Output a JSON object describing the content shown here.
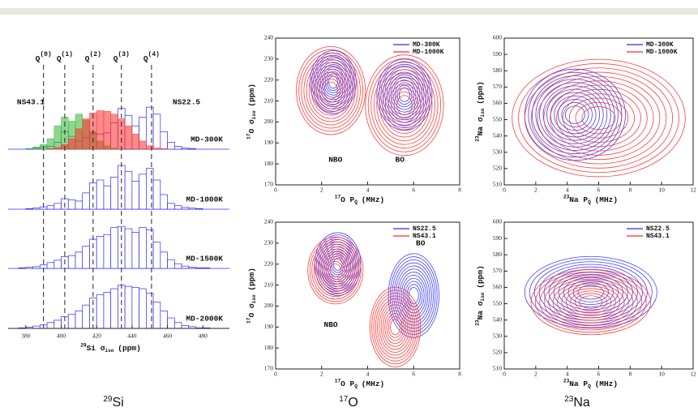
{
  "chart_data": [
    {
      "type": "histogram",
      "xlabel": {
        "sup": "29",
        "base": "Si σ",
        "sub": "iso",
        "unit": "(ppm)"
      },
      "xlim": [
        370,
        495
      ],
      "xticks": [
        380,
        400,
        420,
        440,
        460,
        480
      ],
      "ylim": [
        0,
        100
      ],
      "bins": [
        376,
        380,
        384,
        388,
        392,
        396,
        400,
        404,
        408,
        412,
        416,
        420,
        424,
        428,
        432,
        436,
        440,
        444,
        448,
        452,
        456,
        460,
        464,
        468,
        472,
        476,
        480,
        484,
        488
      ],
      "series": [
        {
          "name": "MD-300K",
          "color": "#2b2bff",
          "values": [
            0,
            1,
            2,
            4,
            5,
            12,
            30,
            22,
            14,
            20,
            28,
            26,
            28,
            45,
            70,
            58,
            40,
            55,
            72,
            60,
            30,
            12,
            5,
            2,
            1,
            0,
            0,
            0
          ]
        },
        {
          "name": "MD-1000K",
          "color": "#2b2bff",
          "values": [
            0,
            1,
            2,
            4,
            6,
            10,
            18,
            16,
            14,
            28,
            45,
            50,
            40,
            55,
            75,
            65,
            48,
            60,
            70,
            50,
            25,
            10,
            6,
            3,
            2,
            1,
            0,
            0
          ]
        },
        {
          "name": "MD-1500K",
          "color": "#2b2bff",
          "values": [
            1,
            2,
            3,
            6,
            10,
            14,
            20,
            22,
            28,
            38,
            50,
            55,
            58,
            70,
            72,
            68,
            62,
            70,
            66,
            45,
            28,
            15,
            8,
            4,
            2,
            1,
            1,
            0
          ]
        },
        {
          "name": "MD-2000K",
          "color": "#2b2bff",
          "values": [
            1,
            2,
            4,
            6,
            10,
            14,
            20,
            24,
            30,
            40,
            52,
            58,
            62,
            68,
            74,
            72,
            70,
            68,
            60,
            45,
            30,
            18,
            10,
            5,
            3,
            1,
            1,
            0
          ]
        }
      ],
      "overlays": [
        {
          "name": "NS43.1",
          "color": "#2fb52f",
          "values": [
            0,
            1,
            4,
            8,
            18,
            40,
            55,
            48,
            60,
            50,
            30,
            14,
            6,
            2,
            0,
            0,
            0,
            0,
            0,
            0,
            0,
            0,
            0,
            0,
            0,
            0,
            0,
            0
          ]
        },
        {
          "name": "NS22.5",
          "color": "#ff2a2a",
          "values": [
            0,
            0,
            0,
            0,
            1,
            3,
            8,
            18,
            35,
            52,
            62,
            66,
            65,
            60,
            52,
            40,
            26,
            14,
            6,
            2,
            1,
            0,
            0,
            0,
            0,
            0,
            0,
            0
          ]
        }
      ],
      "reference_lines": [
        {
          "x": 390,
          "base": "Q",
          "sup": "(0)"
        },
        {
          "x": 402,
          "base": "Q",
          "sup": "(1)"
        },
        {
          "x": 418,
          "base": "Q",
          "sup": "(2)"
        },
        {
          "x": 434,
          "base": "Q",
          "sup": "(3)"
        },
        {
          "x": 451,
          "base": "Q",
          "sup": "(4)"
        }
      ]
    },
    {
      "type": "contour",
      "xlabel": {
        "sup": "17",
        "base": "O P",
        "sub": "Q",
        "unit": "(MHz)"
      },
      "ylabel": {
        "sup": "17",
        "base": "O σ",
        "sub": "iso",
        "unit": "(ppm)"
      },
      "xlim": [
        0,
        8
      ],
      "xticks": [
        0,
        2,
        4,
        6,
        8
      ],
      "ylim": [
        170,
        240
      ],
      "yticks": [
        170,
        180,
        190,
        200,
        210,
        220,
        230,
        240
      ],
      "legend": "top-right",
      "series": [
        {
          "name": "MD-300K",
          "color": "#2b2bff",
          "x": [
            2.5,
            5.6
          ],
          "values": [
            219,
            213
          ],
          "x_spread": [
            1.0,
            1.2
          ],
          "y_spread": [
            15,
            17
          ]
        },
        {
          "name": "MD-1000K",
          "color": "#ff2a2a",
          "x": [
            2.4,
            5.6
          ],
          "values": [
            215,
            208
          ],
          "x_spread": [
            1.5,
            1.7
          ],
          "y_spread": [
            21,
            24
          ]
        }
      ],
      "annotations": [
        "NBO",
        "BO"
      ]
    },
    {
      "type": "contour",
      "xlabel": {
        "sup": "23",
        "base": "Na P",
        "sub": "Q",
        "unit": "(MHz)"
      },
      "ylabel": {
        "sup": "23",
        "base": "Na σ",
        "sub": "iso",
        "unit": "(ppm)"
      },
      "xlim": [
        0,
        12
      ],
      "xticks": [
        0,
        2,
        4,
        6,
        8,
        10,
        12
      ],
      "ylim": [
        510,
        600
      ],
      "yticks": [
        510,
        520,
        530,
        540,
        550,
        560,
        570,
        580,
        590,
        600
      ],
      "legend": "top-right",
      "series": [
        {
          "name": "MD-300K",
          "color": "#2b2bff",
          "x": [
            4.5
          ],
          "values": [
            553
          ],
          "x_spread": [
            3.2
          ],
          "y_spread": [
            28
          ]
        },
        {
          "name": "MD-1000K",
          "color": "#ff2a2a",
          "x": [
            6
          ],
          "values": [
            551
          ],
          "x_spread": [
            5.5
          ],
          "y_spread": [
            36
          ]
        }
      ],
      "annotations": []
    },
    {
      "type": "contour",
      "xlabel": {
        "sup": "17",
        "base": "O P",
        "sub": "Q",
        "unit": "(MHz)"
      },
      "ylabel": {
        "sup": "17",
        "base": "O σ",
        "sub": "iso",
        "unit": "(ppm)"
      },
      "xlim": [
        0,
        8
      ],
      "xticks": [
        0,
        2,
        4,
        6,
        8
      ],
      "ylim": [
        170,
        240
      ],
      "yticks": [
        170,
        180,
        190,
        200,
        210,
        220,
        230,
        240
      ],
      "legend": "top-right",
      "series": [
        {
          "name": "NS22.5",
          "color": "#2b2bff",
          "x": [
            2.7,
            6.0
          ],
          "values": [
            220,
            205
          ],
          "x_spread": [
            1.0,
            1.1
          ],
          "y_spread": [
            15,
            20
          ]
        },
        {
          "name": "NS43.1",
          "color": "#ff2a2a",
          "x": [
            2.6,
            5.2
          ],
          "values": [
            217,
            190
          ],
          "x_spread": [
            1.2,
            1.1
          ],
          "y_spread": [
            16,
            19
          ]
        }
      ],
      "annotations": [
        "NBO",
        "BO"
      ]
    },
    {
      "type": "contour",
      "xlabel": {
        "sup": "23",
        "base": "Na P",
        "sub": "Q",
        "unit": "(MHz)"
      },
      "ylabel": {
        "sup": "23",
        "base": "Na σ",
        "sub": "iso",
        "unit": "(ppm)"
      },
      "xlim": [
        0,
        12
      ],
      "xticks": [
        0,
        2,
        4,
        6,
        8,
        10,
        12
      ],
      "ylim": [
        510,
        600
      ],
      "yticks": [
        510,
        520,
        530,
        540,
        550,
        560,
        570,
        580,
        590,
        600
      ],
      "legend": "top-right",
      "series": [
        {
          "name": "NS22.5",
          "color": "#2b2bff",
          "x": [
            5.5
          ],
          "values": [
            557
          ],
          "x_spread": [
            4.2
          ],
          "y_spread": [
            22
          ]
        },
        {
          "name": "NS43.1",
          "color": "#ff2a2a",
          "x": [
            5.5
          ],
          "values": [
            551
          ],
          "x_spread": [
            3.8
          ],
          "y_spread": [
            20
          ]
        }
      ],
      "annotations": []
    }
  ],
  "captions": [
    {
      "sup": "29",
      "base": "Si"
    },
    {
      "sup": "17",
      "base": "O"
    },
    {
      "sup": "23",
      "base": "Na"
    }
  ]
}
